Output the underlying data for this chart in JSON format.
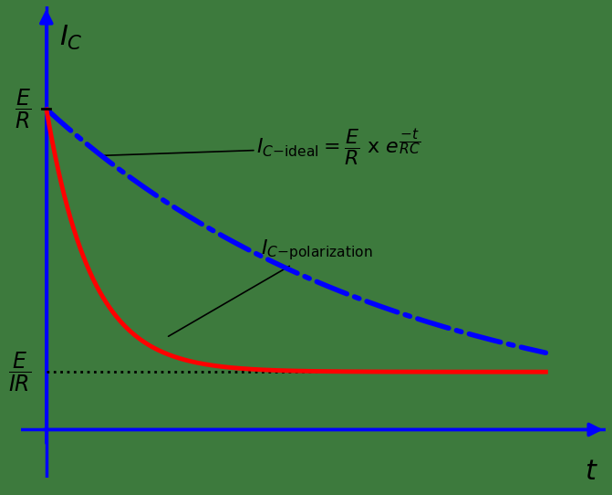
{
  "background_color": "#3d7a3d",
  "axis_color": "blue",
  "axis_linewidth": 2.5,
  "t_max": 5.0,
  "RC_ideal": 3.5,
  "RC_real_tau": 0.45,
  "E_over_R": 1.0,
  "E_over_IR": 0.18,
  "ideal_color": "blue",
  "ideal_linestyle": "-.",
  "ideal_linewidth": 4.0,
  "real_color": "red",
  "real_linewidth": 3.5,
  "dotted_color": "black",
  "dotted_linestyle": ":",
  "dotted_linewidth": 2.0,
  "tick_fontsize": 17,
  "label_fontsize": 22,
  "annotation_fontsize": 16
}
